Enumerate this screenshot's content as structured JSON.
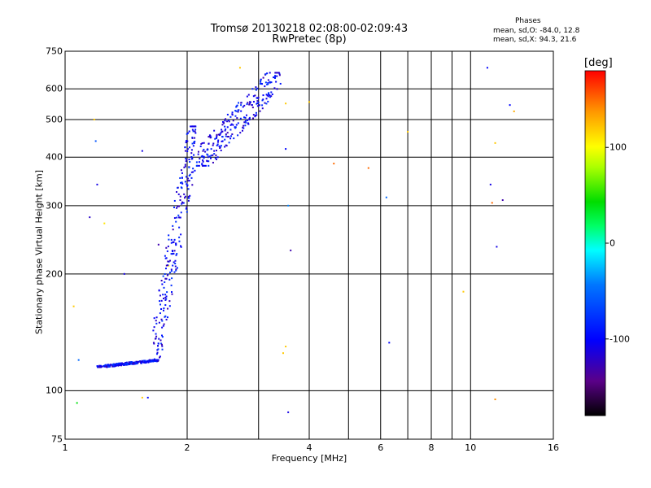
{
  "header": {
    "title": "Tromsø 20130218 02:08:00-02:09:43",
    "subtitle": "RwPretec (8p)"
  },
  "stats": {
    "title": "Phases",
    "line_o": "mean, sd,O: -84.0, 12.8",
    "line_x": "mean, sd,X:  94.3, 21.6"
  },
  "colorbar": {
    "unit": "[deg]",
    "ticks": [
      {
        "value": 100,
        "label": "100"
      },
      {
        "value": 0,
        "label": "0"
      },
      {
        "value": -100,
        "label": "-100"
      }
    ],
    "range": [
      -180,
      180
    ]
  },
  "chart_data": {
    "type": "scatter",
    "title": "Tromsø 20130218 02:08:00-02:09:43",
    "subtitle": "RwPretec (8p)",
    "xlabel": "Frequency [MHz]",
    "ylabel": "Stationary phase Virtual Height [km]",
    "x_scale": "log",
    "y_scale": "log",
    "xlim": [
      1,
      16
    ],
    "ylim": [
      75,
      750
    ],
    "x_ticks": [
      1,
      2,
      4,
      6,
      8,
      10,
      16
    ],
    "x_tick_labels": [
      "1",
      "2",
      "4",
      "6",
      "8",
      "10",
      "16"
    ],
    "x_minor_ticks": [
      3,
      5,
      7,
      9
    ],
    "y_ticks": [
      75,
      100,
      200,
      300,
      400,
      500,
      600,
      750
    ],
    "y_tick_labels": [
      "75",
      "100",
      "200",
      "300",
      "400",
      "500",
      "600",
      "750"
    ],
    "grid": true,
    "color_by": "phase [deg]",
    "series": [
      {
        "trace": "low-height E-like trace, phase ~ -100",
        "x_range": [
          1.2,
          1.7
        ],
        "y_range": [
          115,
          120
        ],
        "phase": -100
      },
      {
        "trace": "F-region rise, phase ~ -100",
        "x_range": [
          1.65,
          2.1
        ],
        "y_range": [
          120,
          480
        ],
        "phase": -100
      },
      {
        "trace": "F-region trace, phase ~ -100",
        "x_range": [
          2.1,
          3.4
        ],
        "y_range": [
          380,
          660
        ],
        "phase": -100
      }
    ],
    "points": [
      {
        "x": 1.07,
        "y": 93,
        "phase": 40
      },
      {
        "x": 1.05,
        "y": 165,
        "phase": 120
      },
      {
        "x": 1.08,
        "y": 120,
        "phase": -50
      },
      {
        "x": 1.15,
        "y": 280,
        "phase": -120
      },
      {
        "x": 1.18,
        "y": 500,
        "phase": 120
      },
      {
        "x": 1.19,
        "y": 440,
        "phase": -60
      },
      {
        "x": 1.2,
        "y": 340,
        "phase": -110
      },
      {
        "x": 1.25,
        "y": 270,
        "phase": 110
      },
      {
        "x": 1.4,
        "y": 200,
        "phase": -110
      },
      {
        "x": 1.55,
        "y": 415,
        "phase": -110
      },
      {
        "x": 1.55,
        "y": 96,
        "phase": 120
      },
      {
        "x": 1.6,
        "y": 96,
        "phase": -100
      },
      {
        "x": 1.7,
        "y": 238,
        "phase": -130
      },
      {
        "x": 1.8,
        "y": 210,
        "phase": 110
      },
      {
        "x": 2.7,
        "y": 680,
        "phase": 120
      },
      {
        "x": 3.2,
        "y": 660,
        "phase": -110
      },
      {
        "x": 3.5,
        "y": 420,
        "phase": -100
      },
      {
        "x": 3.5,
        "y": 550,
        "phase": 120
      },
      {
        "x": 3.55,
        "y": 300,
        "phase": -40
      },
      {
        "x": 3.6,
        "y": 230,
        "phase": -130
      },
      {
        "x": 3.55,
        "y": 88,
        "phase": -110
      },
      {
        "x": 3.5,
        "y": 130,
        "phase": 120
      },
      {
        "x": 3.45,
        "y": 125,
        "phase": 120
      },
      {
        "x": 4.0,
        "y": 555,
        "phase": 120
      },
      {
        "x": 4.6,
        "y": 385,
        "phase": 150
      },
      {
        "x": 5.6,
        "y": 375,
        "phase": 150
      },
      {
        "x": 6.2,
        "y": 315,
        "phase": -50
      },
      {
        "x": 6.3,
        "y": 133,
        "phase": -100
      },
      {
        "x": 7.0,
        "y": 465,
        "phase": 120
      },
      {
        "x": 9.6,
        "y": 180,
        "phase": 120
      },
      {
        "x": 11.0,
        "y": 680,
        "phase": -100
      },
      {
        "x": 11.2,
        "y": 340,
        "phase": -110
      },
      {
        "x": 11.3,
        "y": 305,
        "phase": 150
      },
      {
        "x": 11.5,
        "y": 435,
        "phase": 120
      },
      {
        "x": 11.6,
        "y": 235,
        "phase": -110
      },
      {
        "x": 11.5,
        "y": 95,
        "phase": 140
      },
      {
        "x": 12.0,
        "y": 310,
        "phase": -130
      },
      {
        "x": 12.5,
        "y": 545,
        "phase": -100
      },
      {
        "x": 12.8,
        "y": 525,
        "phase": 130
      }
    ]
  }
}
